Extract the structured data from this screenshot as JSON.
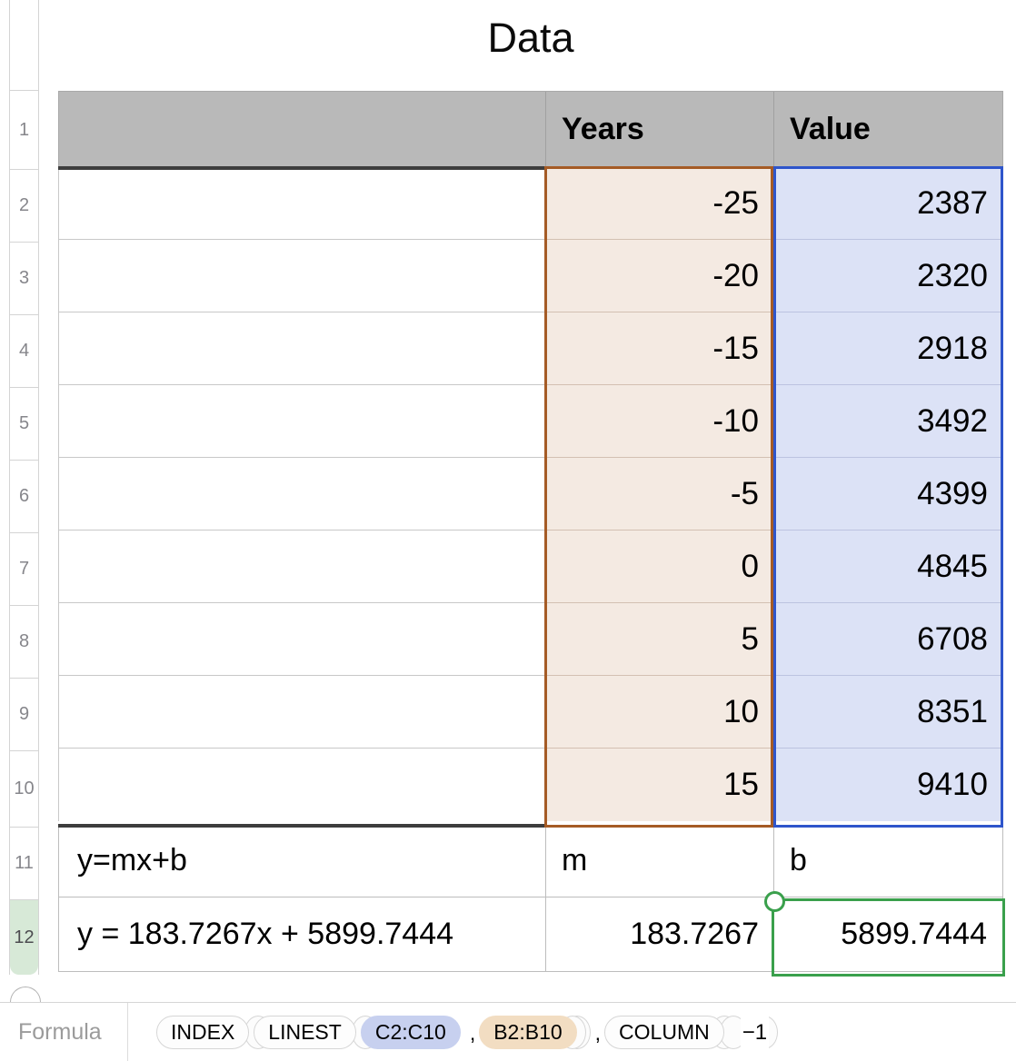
{
  "sheet": {
    "title": "Data",
    "row_numbers": [
      "1",
      "2",
      "3",
      "4",
      "5",
      "6",
      "7",
      "8",
      "9",
      "10",
      "11",
      "12"
    ],
    "header": {
      "years": "Years",
      "value": "Value"
    },
    "rows": [
      {
        "years": "-25",
        "value": "2387"
      },
      {
        "years": "-20",
        "value": "2320"
      },
      {
        "years": "-15",
        "value": "2918"
      },
      {
        "years": "-10",
        "value": "3492"
      },
      {
        "years": "-5",
        "value": "4399"
      },
      {
        "years": "0",
        "value": "4845"
      },
      {
        "years": "5",
        "value": "6708"
      },
      {
        "years": "10",
        "value": "8351"
      },
      {
        "years": "15",
        "value": "9410"
      }
    ],
    "equation_row": {
      "label": "y=mx+b",
      "m_label": "m",
      "b_label": "b"
    },
    "result_row": {
      "equation": "y = 183.7267x + 5899.7444",
      "m": "183.7267",
      "b": "5899.7444"
    }
  },
  "selection": {
    "active_cell": "C12",
    "years_range": "B2:B10",
    "value_range": "C2:C10"
  },
  "formula_bar": {
    "label": "Formula",
    "tokens": [
      {
        "type": "func",
        "label": "INDEX"
      },
      {
        "type": "open"
      },
      {
        "type": "func",
        "label": "LINEST"
      },
      {
        "type": "open"
      },
      {
        "type": "range",
        "label": "C2:C10",
        "style": "blue"
      },
      {
        "type": "comma",
        "label": ","
      },
      {
        "type": "range",
        "label": "B2:B10",
        "style": "tan"
      },
      {
        "type": "close"
      },
      {
        "type": "close"
      },
      {
        "type": "comma",
        "label": ","
      },
      {
        "type": "func",
        "label": "COLUMN"
      },
      {
        "type": "open"
      },
      {
        "type": "close"
      },
      {
        "type": "text",
        "label": "−1"
      },
      {
        "type": "close"
      }
    ]
  },
  "colors": {
    "header_fill": "#b9b9b9",
    "dark_rule": "#3d3d3d",
    "years_fill": "#f4eae2",
    "years_border": "#a55b25",
    "value_fill": "#dce2f6",
    "value_border": "#2e55cb",
    "sel_green": "#3aa04c",
    "sel_row_fill": "#d7e9d7",
    "token_blue": "#c7d0ef",
    "token_tan": "#f2ddc2"
  }
}
